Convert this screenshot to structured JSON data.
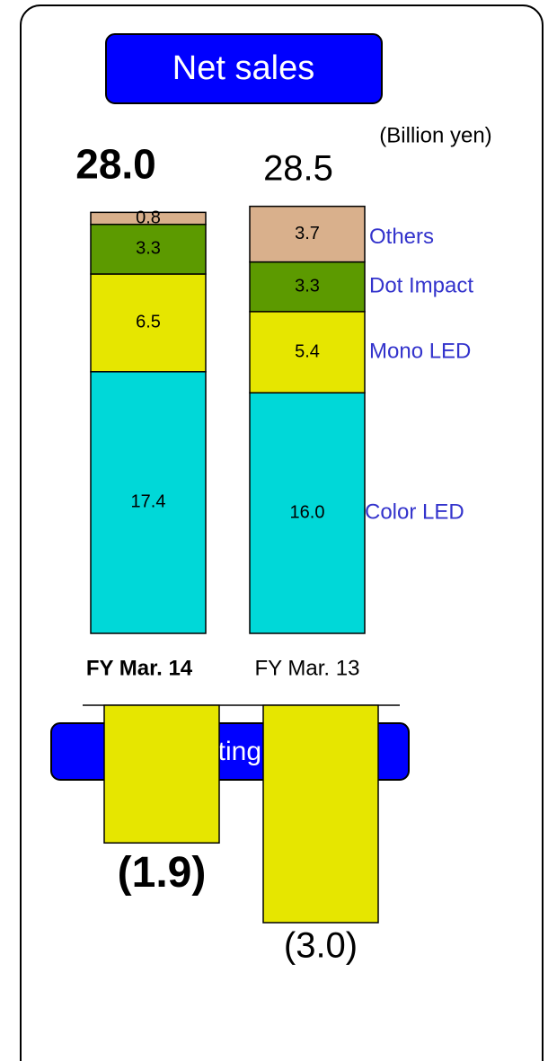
{
  "chart_data": [
    {
      "type": "stacked_bar",
      "title": "Net sales",
      "unit": "(Billion yen)",
      "categories": [
        "FY Mar. 14",
        "FY Mar. 13"
      ],
      "totals": [
        28.0,
        28.5
      ],
      "totals_labels": [
        "28.0",
        "28.5"
      ],
      "series": [
        {
          "name": "Color LED",
          "color": "#00d8d8",
          "values": [
            17.4,
            16.0
          ],
          "value_labels": [
            "17.4",
            "16.0"
          ]
        },
        {
          "name": "Mono LED",
          "color": "#e6e600",
          "values": [
            6.5,
            5.4
          ],
          "value_labels": [
            "6.5",
            "5.4"
          ]
        },
        {
          "name": "Dot Impact",
          "color": "#5c9a00",
          "values": [
            3.3,
            3.3
          ],
          "value_labels": [
            "3.3",
            "3.3"
          ]
        },
        {
          "name": "Others",
          "color": "#d9b08c",
          "values": [
            0.8,
            3.7
          ],
          "value_labels": [
            "0.8",
            "3.7"
          ]
        }
      ]
    },
    {
      "type": "bar",
      "title": "Operating loss",
      "categories": [
        "FY Mar. 14",
        "FY Mar. 13"
      ],
      "values": [
        -1.9,
        -3.0
      ],
      "value_labels": [
        "(1.9)",
        "(3.0)"
      ],
      "color": "#e6e600"
    }
  ]
}
